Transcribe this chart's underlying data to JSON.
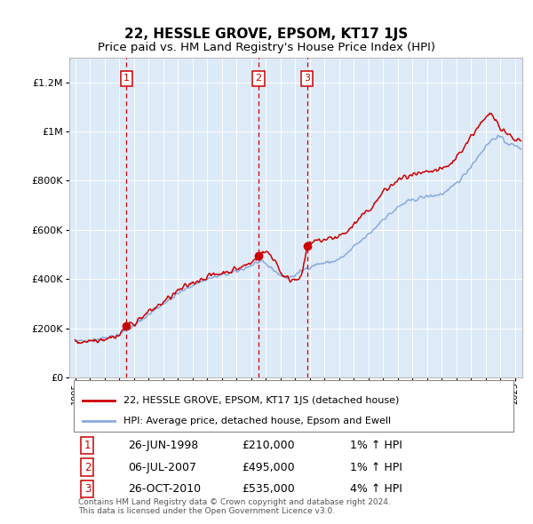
{
  "title": "22, HESSLE GROVE, EPSOM, KT17 1JS",
  "subtitle": "Price paid vs. HM Land Registry's House Price Index (HPI)",
  "legend_line1": "22, HESSLE GROVE, EPSOM, KT17 1JS (detached house)",
  "legend_line2": "HPI: Average price, detached house, Epsom and Ewell",
  "footer1": "Contains HM Land Registry data © Crown copyright and database right 2024.",
  "footer2": "This data is licensed under the Open Government Licence v3.0.",
  "transactions": [
    {
      "num": "1",
      "date": "26-JUN-1998",
      "price": "£210,000",
      "hpi_pct": "1% ↑ HPI",
      "x_year": 1998.49,
      "y_val": 210000
    },
    {
      "num": "2",
      "date": "06-JUL-2007",
      "price": "£495,000",
      "hpi_pct": "1% ↑ HPI",
      "x_year": 2007.51,
      "y_val": 495000
    },
    {
      "num": "3",
      "date": "26-OCT-2010",
      "price": "£535,000",
      "hpi_pct": "4% ↑ HPI",
      "x_year": 2010.82,
      "y_val": 535000
    }
  ],
  "price_color": "#cc0000",
  "hpi_color": "#88aadd",
  "plot_bg": "#ddeaf7",
  "grid_color": "#ffffff",
  "marker_color": "#cc0000",
  "dashed_line_color": "#cc0000",
  "box_color": "#cc0000",
  "ylim": [
    0,
    1300000
  ],
  "xlim_start": 1994.6,
  "xlim_end": 2025.5,
  "yticks": [
    0,
    200000,
    400000,
    600000,
    800000,
    1000000,
    1200000
  ],
  "ytick_labels": [
    "£0",
    "£200K",
    "£400K",
    "£600K",
    "£800K",
    "£1M",
    "£1.2M"
  ],
  "xticks": [
    1995,
    1996,
    1997,
    1998,
    1999,
    2000,
    2001,
    2002,
    2003,
    2004,
    2005,
    2006,
    2007,
    2008,
    2009,
    2010,
    2011,
    2012,
    2013,
    2014,
    2015,
    2016,
    2017,
    2018,
    2019,
    2020,
    2021,
    2022,
    2023,
    2024,
    2025
  ],
  "chart_height_ratio": 2.2,
  "bottom_height_ratio": 1.0
}
